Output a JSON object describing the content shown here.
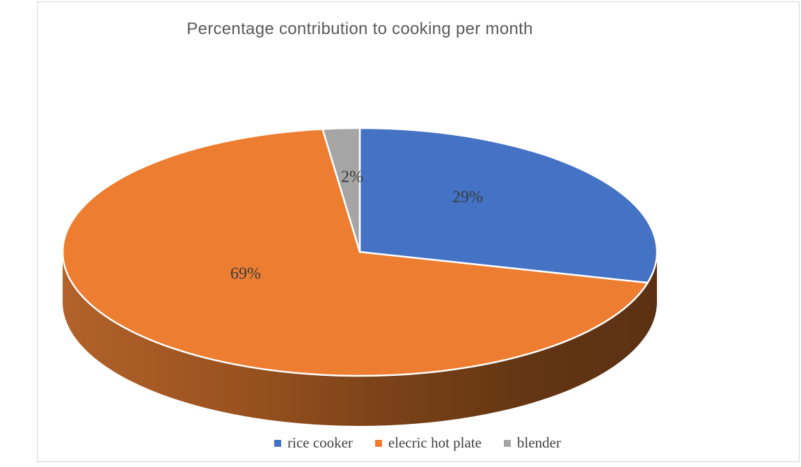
{
  "chart_data": {
    "type": "pie",
    "effect": "3d",
    "title": "Percentage contribution to cooking per month",
    "legend_position": "bottom",
    "start_angle_deg": 90,
    "direction": "clockwise",
    "slices": [
      {
        "label": "rice cooker",
        "value": 29,
        "data_label": "29%",
        "color": "#4472C4"
      },
      {
        "label": "elecric hot plate",
        "value": 69,
        "data_label": "69%",
        "color": "#ED7D31"
      },
      {
        "label": "blender",
        "value": 2,
        "data_label": "2%",
        "color": "#A5A5A5"
      }
    ]
  }
}
